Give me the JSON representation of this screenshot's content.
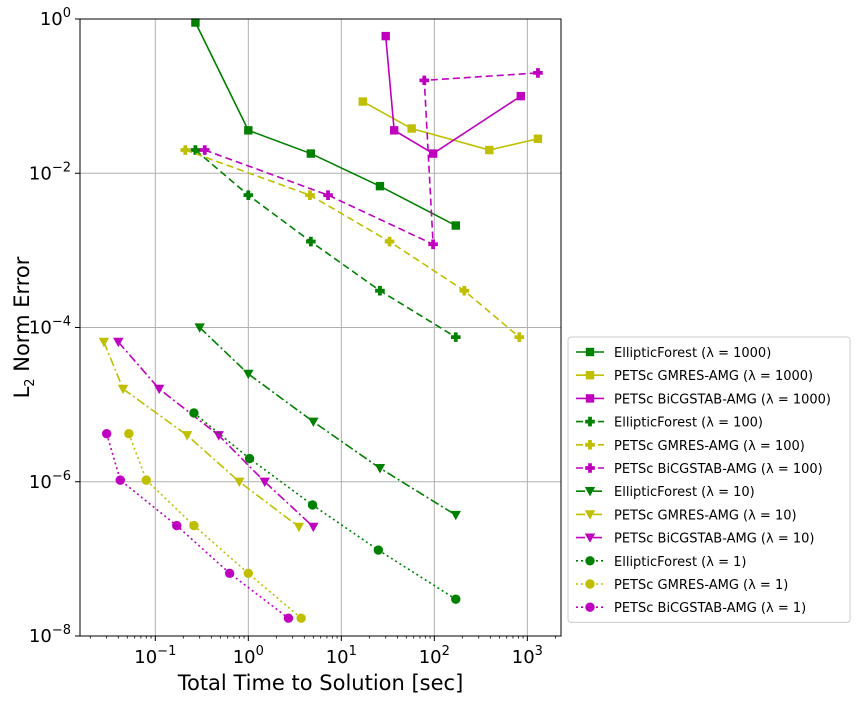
{
  "chart_data": {
    "type": "line",
    "xlabel": "Total Time to Solution [sec]",
    "ylabel_main": "L",
    "ylabel_sub": "2",
    "ylabel_rest": " Norm Error",
    "x_scale": "log",
    "y_scale": "log",
    "xlim": [
      0.0155,
      2300
    ],
    "ylim": [
      1e-08,
      1
    ],
    "grid": true,
    "legend_position": "right",
    "x_ticks": [
      {
        "value": 0.1,
        "base": "10",
        "exp": "−1"
      },
      {
        "value": 1,
        "base": "10",
        "exp": "0"
      },
      {
        "value": 10,
        "base": "10",
        "exp": "1"
      },
      {
        "value": 100,
        "base": "10",
        "exp": "2"
      },
      {
        "value": 1000,
        "base": "10",
        "exp": "3"
      }
    ],
    "y_ticks": [
      {
        "value": 1e-08,
        "base": "10",
        "exp": "−8"
      },
      {
        "value": 1e-06,
        "base": "10",
        "exp": "−6"
      },
      {
        "value": 0.0001,
        "base": "10",
        "exp": "−4"
      },
      {
        "value": 0.01,
        "base": "10",
        "exp": "−2"
      },
      {
        "value": 1,
        "base": "10",
        "exp": "0"
      }
    ],
    "series": [
      {
        "name": "EllipticForest (λ = 1000)",
        "color": "#008000",
        "dash": "solid",
        "marker": "square",
        "x": [
          0.27,
          1.0,
          4.7,
          26,
          170
        ],
        "y": [
          0.9,
          0.036,
          0.018,
          0.0068,
          0.0021
        ]
      },
      {
        "name": "PETSc GMRES-AMG (λ = 1000)",
        "color": "#bfbf00",
        "dash": "solid",
        "marker": "square",
        "x": [
          17,
          57,
          390,
          1300
        ],
        "y": [
          0.085,
          0.038,
          0.02,
          0.028
        ]
      },
      {
        "name": "PETSc BiCGSTAB-AMG (λ = 1000)",
        "color": "#bf00bf",
        "dash": "solid",
        "marker": "square",
        "x": [
          30,
          37,
          97,
          850
        ],
        "y": [
          0.6,
          0.036,
          0.018,
          0.1
        ]
      },
      {
        "name": "EllipticForest (λ = 100)",
        "color": "#008000",
        "dash": "dashed",
        "marker": "plus",
        "x": [
          0.27,
          1.0,
          4.7,
          26,
          170
        ],
        "y": [
          0.02,
          0.0052,
          0.0013,
          0.0003,
          7.5e-05
        ]
      },
      {
        "name": "PETSc GMRES-AMG (λ = 100)",
        "color": "#bfbf00",
        "dash": "dashed",
        "marker": "plus",
        "x": [
          0.21,
          4.6,
          33,
          210,
          820
        ],
        "y": [
          0.02,
          0.0052,
          0.0013,
          0.0003,
          7.5e-05
        ]
      },
      {
        "name": "PETSc BiCGSTAB-AMG (λ = 100)",
        "color": "#bf00bf",
        "dash": "dashed",
        "marker": "plus",
        "x": [
          0.34,
          7.2,
          97,
          78,
          1300
        ],
        "y": [
          0.02,
          0.0052,
          0.0012,
          0.16,
          0.2
        ]
      },
      {
        "name": "EllipticForest (λ = 10)",
        "color": "#008000",
        "dash": "dashdot",
        "marker": "triangle-down",
        "x": [
          0.3,
          1.0,
          5.0,
          26,
          170
        ],
        "y": [
          0.0001,
          2.5e-05,
          6e-06,
          1.5e-06,
          3.7e-07
        ]
      },
      {
        "name": "PETSc GMRES-AMG (λ = 10)",
        "color": "#bfbf00",
        "dash": "dashdot",
        "marker": "triangle-down",
        "x": [
          0.028,
          0.045,
          0.22,
          0.8,
          3.5
        ],
        "y": [
          6.5e-05,
          1.6e-05,
          4e-06,
          1e-06,
          2.6e-07
        ]
      },
      {
        "name": "PETSc BiCGSTAB-AMG (λ = 10)",
        "color": "#bf00bf",
        "dash": "dashdot",
        "marker": "triangle-down",
        "x": [
          0.04,
          0.11,
          0.48,
          1.5,
          5.0
        ],
        "y": [
          6.5e-05,
          1.6e-05,
          4e-06,
          1e-06,
          2.6e-07
        ]
      },
      {
        "name": "EllipticForest (λ = 1)",
        "color": "#008000",
        "dash": "dotted",
        "marker": "circle",
        "x": [
          0.26,
          1.03,
          4.9,
          25,
          170
        ],
        "y": [
          7.8e-06,
          2e-06,
          5e-07,
          1.3e-07,
          3e-08
        ]
      },
      {
        "name": "PETSc GMRES-AMG (λ = 1)",
        "color": "#bfbf00",
        "dash": "dotted",
        "marker": "circle",
        "x": [
          0.052,
          0.08,
          0.26,
          1.0,
          3.7
        ],
        "y": [
          4.2e-06,
          1.05e-06,
          2.7e-07,
          6.5e-08,
          1.7e-08
        ]
      },
      {
        "name": "PETSc BiCGSTAB-AMG (λ = 1)",
        "color": "#bf00bf",
        "dash": "dotted",
        "marker": "circle",
        "x": [
          0.03,
          0.042,
          0.17,
          0.63,
          2.7
        ],
        "y": [
          4.2e-06,
          1.05e-06,
          2.7e-07,
          6.5e-08,
          1.7e-08
        ]
      }
    ]
  }
}
